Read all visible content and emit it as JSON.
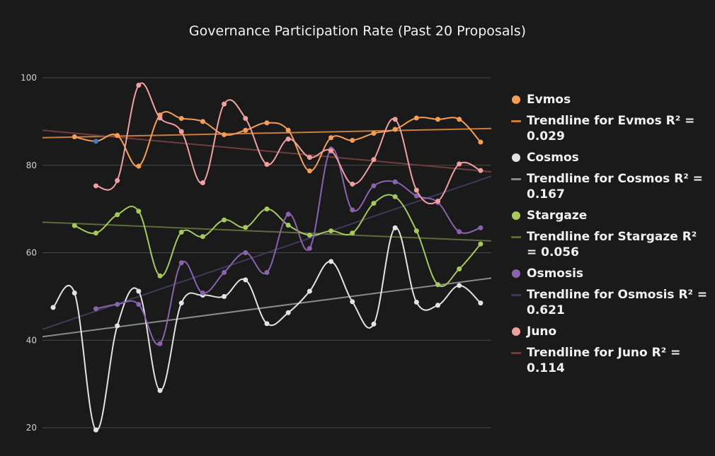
{
  "chart_data": {
    "type": "line",
    "title": "Governance Participation Rate (Past 20 Proposals)",
    "xlabel": "",
    "ylabel": "",
    "x": [
      1,
      2,
      3,
      4,
      5,
      6,
      7,
      8,
      9,
      10,
      11,
      12,
      13,
      14,
      15,
      16,
      17,
      18,
      19,
      20,
      21
    ],
    "xlim": [
      0.5,
      21.5
    ],
    "ylim": [
      20,
      100
    ],
    "yticks": [
      20,
      40,
      60,
      80,
      100
    ],
    "grid": true,
    "legend_position": "right",
    "series": [
      {
        "name": "Evmos",
        "color": "#f59e56",
        "values": [
          null,
          86.5,
          85.5,
          86.8,
          79.8,
          91.5,
          90.7,
          90.0,
          87.0,
          88.0,
          89.7,
          88.0,
          78.7,
          86.3,
          85.7,
          87.3,
          88.2,
          90.8,
          90.5,
          90.5,
          85.3
        ],
        "highlight": {
          "x": 3,
          "color": "#4c7ab7"
        }
      },
      {
        "name": "Cosmos",
        "color": "#e3e3e3",
        "values": [
          47.5,
          50.8,
          19.5,
          43.3,
          51.2,
          28.5,
          48.5,
          50.3,
          50.0,
          53.8,
          43.8,
          46.3,
          51.2,
          58.0,
          48.8,
          43.7,
          65.7,
          48.7,
          48.0,
          52.5,
          48.5
        ]
      },
      {
        "name": "Stargaze",
        "color": "#a5c95a",
        "values": [
          null,
          66.2,
          64.5,
          68.7,
          69.5,
          54.7,
          64.7,
          63.7,
          67.5,
          65.8,
          70.0,
          66.3,
          64.0,
          65.0,
          64.5,
          71.3,
          72.8,
          65.0,
          52.7,
          56.3,
          62.0
        ]
      },
      {
        "name": "Osmosis",
        "color": "#8a63b0",
        "values": [
          null,
          null,
          47.2,
          48.2,
          48.2,
          39.2,
          57.7,
          50.8,
          55.5,
          60.0,
          55.5,
          68.8,
          61.0,
          83.7,
          69.8,
          75.3,
          76.2,
          73.0,
          71.5,
          64.8,
          65.7
        ]
      },
      {
        "name": "Juno",
        "color": "#f0a0a0",
        "values": [
          null,
          null,
          75.3,
          76.5,
          98.3,
          90.8,
          87.7,
          76.0,
          94.0,
          90.7,
          80.2,
          86.0,
          81.8,
          83.3,
          75.7,
          81.3,
          90.5,
          74.3,
          71.8,
          80.3,
          78.8
        ]
      }
    ],
    "trendlines": [
      {
        "name": "Trendline for Evmos R² = 0.029",
        "color": "#c97c3c",
        "x": [
          0.5,
          21.5
        ],
        "y": [
          86.3,
          88.4
        ]
      },
      {
        "name": "Trendline for Cosmos R² = 0.167",
        "color": "#8a8a8a",
        "x": [
          0.5,
          21.5
        ],
        "y": [
          40.8,
          54.2
        ]
      },
      {
        "name": "Trendline for Stargaze R² = 0.056",
        "color": "#5d6b3a",
        "x": [
          0.5,
          21.5
        ],
        "y": [
          67.0,
          62.7
        ]
      },
      {
        "name": "Trendline for Osmosis R² = 0.621",
        "color": "#3f3a5c",
        "x": [
          0.5,
          21.5
        ],
        "y": [
          42.5,
          77.5
        ]
      },
      {
        "name": "Trendline for Juno R² = 0.114",
        "color": "#6e3e3e",
        "x": [
          0.5,
          21.5
        ],
        "y": [
          88.0,
          78.5
        ]
      }
    ]
  }
}
